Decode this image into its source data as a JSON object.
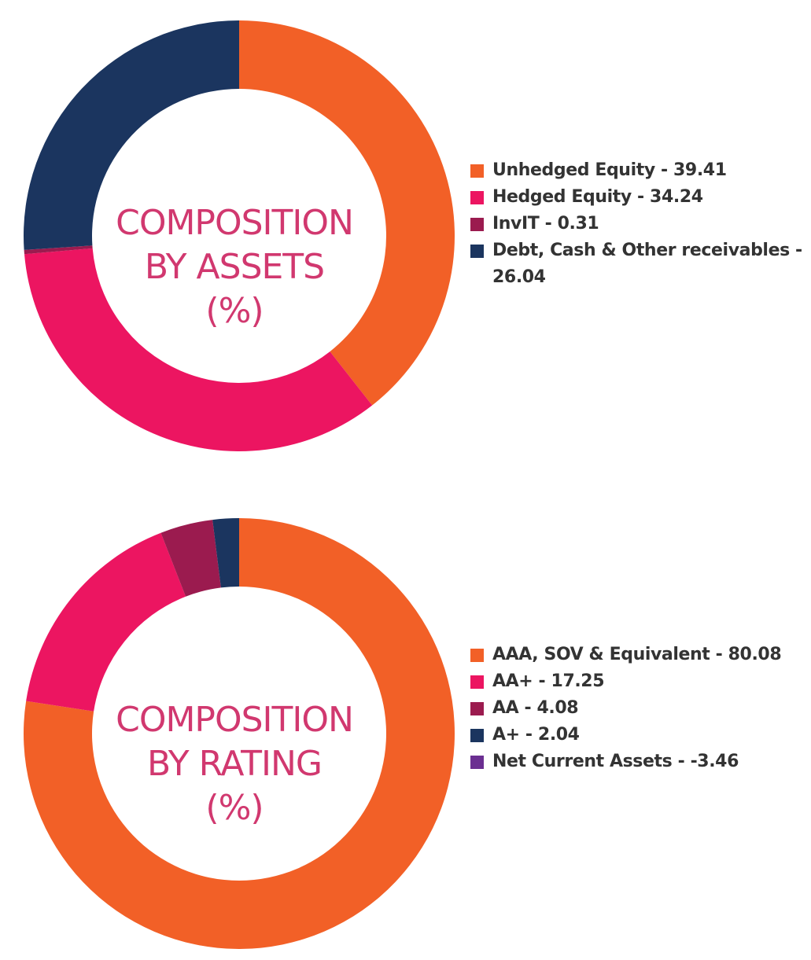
{
  "chart_data": [
    {
      "type": "pie",
      "title_lines": [
        "COMPOSITION",
        "BY ASSETS",
        "(%)"
      ],
      "categories": [
        "Unhedged Equity",
        "Hedged Equity",
        "InvIT",
        "Debt, Cash & Other receivables"
      ],
      "values": [
        39.41,
        34.24,
        0.31,
        26.04
      ],
      "colors": [
        "#f26027",
        "#ec1561",
        "#9b1b4f",
        "#1b355f"
      ],
      "legend_labels": [
        "Unhedged Equity - 39.41",
        "Hedged Equity - 34.24",
        "InvIT - 0.31",
        "Debt, Cash & Other receivables - 26.04"
      ],
      "legend_placement": "right"
    },
    {
      "type": "pie",
      "title_lines": [
        "COMPOSITION",
        "BY RATING",
        "(%)"
      ],
      "categories": [
        "AAA, SOV & Equivalent",
        "AA+",
        "AA",
        "A+",
        "Net Current Assets"
      ],
      "values": [
        80.08,
        17.25,
        4.08,
        2.04,
        -3.46
      ],
      "colors": [
        "#f26027",
        "#ec1561",
        "#9b1b4f",
        "#1b355f",
        "#6b2f91"
      ],
      "legend_labels": [
        "AAA, SOV & Equivalent - 80.08",
        "AA+ - 17.25",
        "AA - 4.08",
        "A+ - 2.04",
        "Net Current Assets - -3.46"
      ],
      "legend_placement": "right"
    }
  ]
}
